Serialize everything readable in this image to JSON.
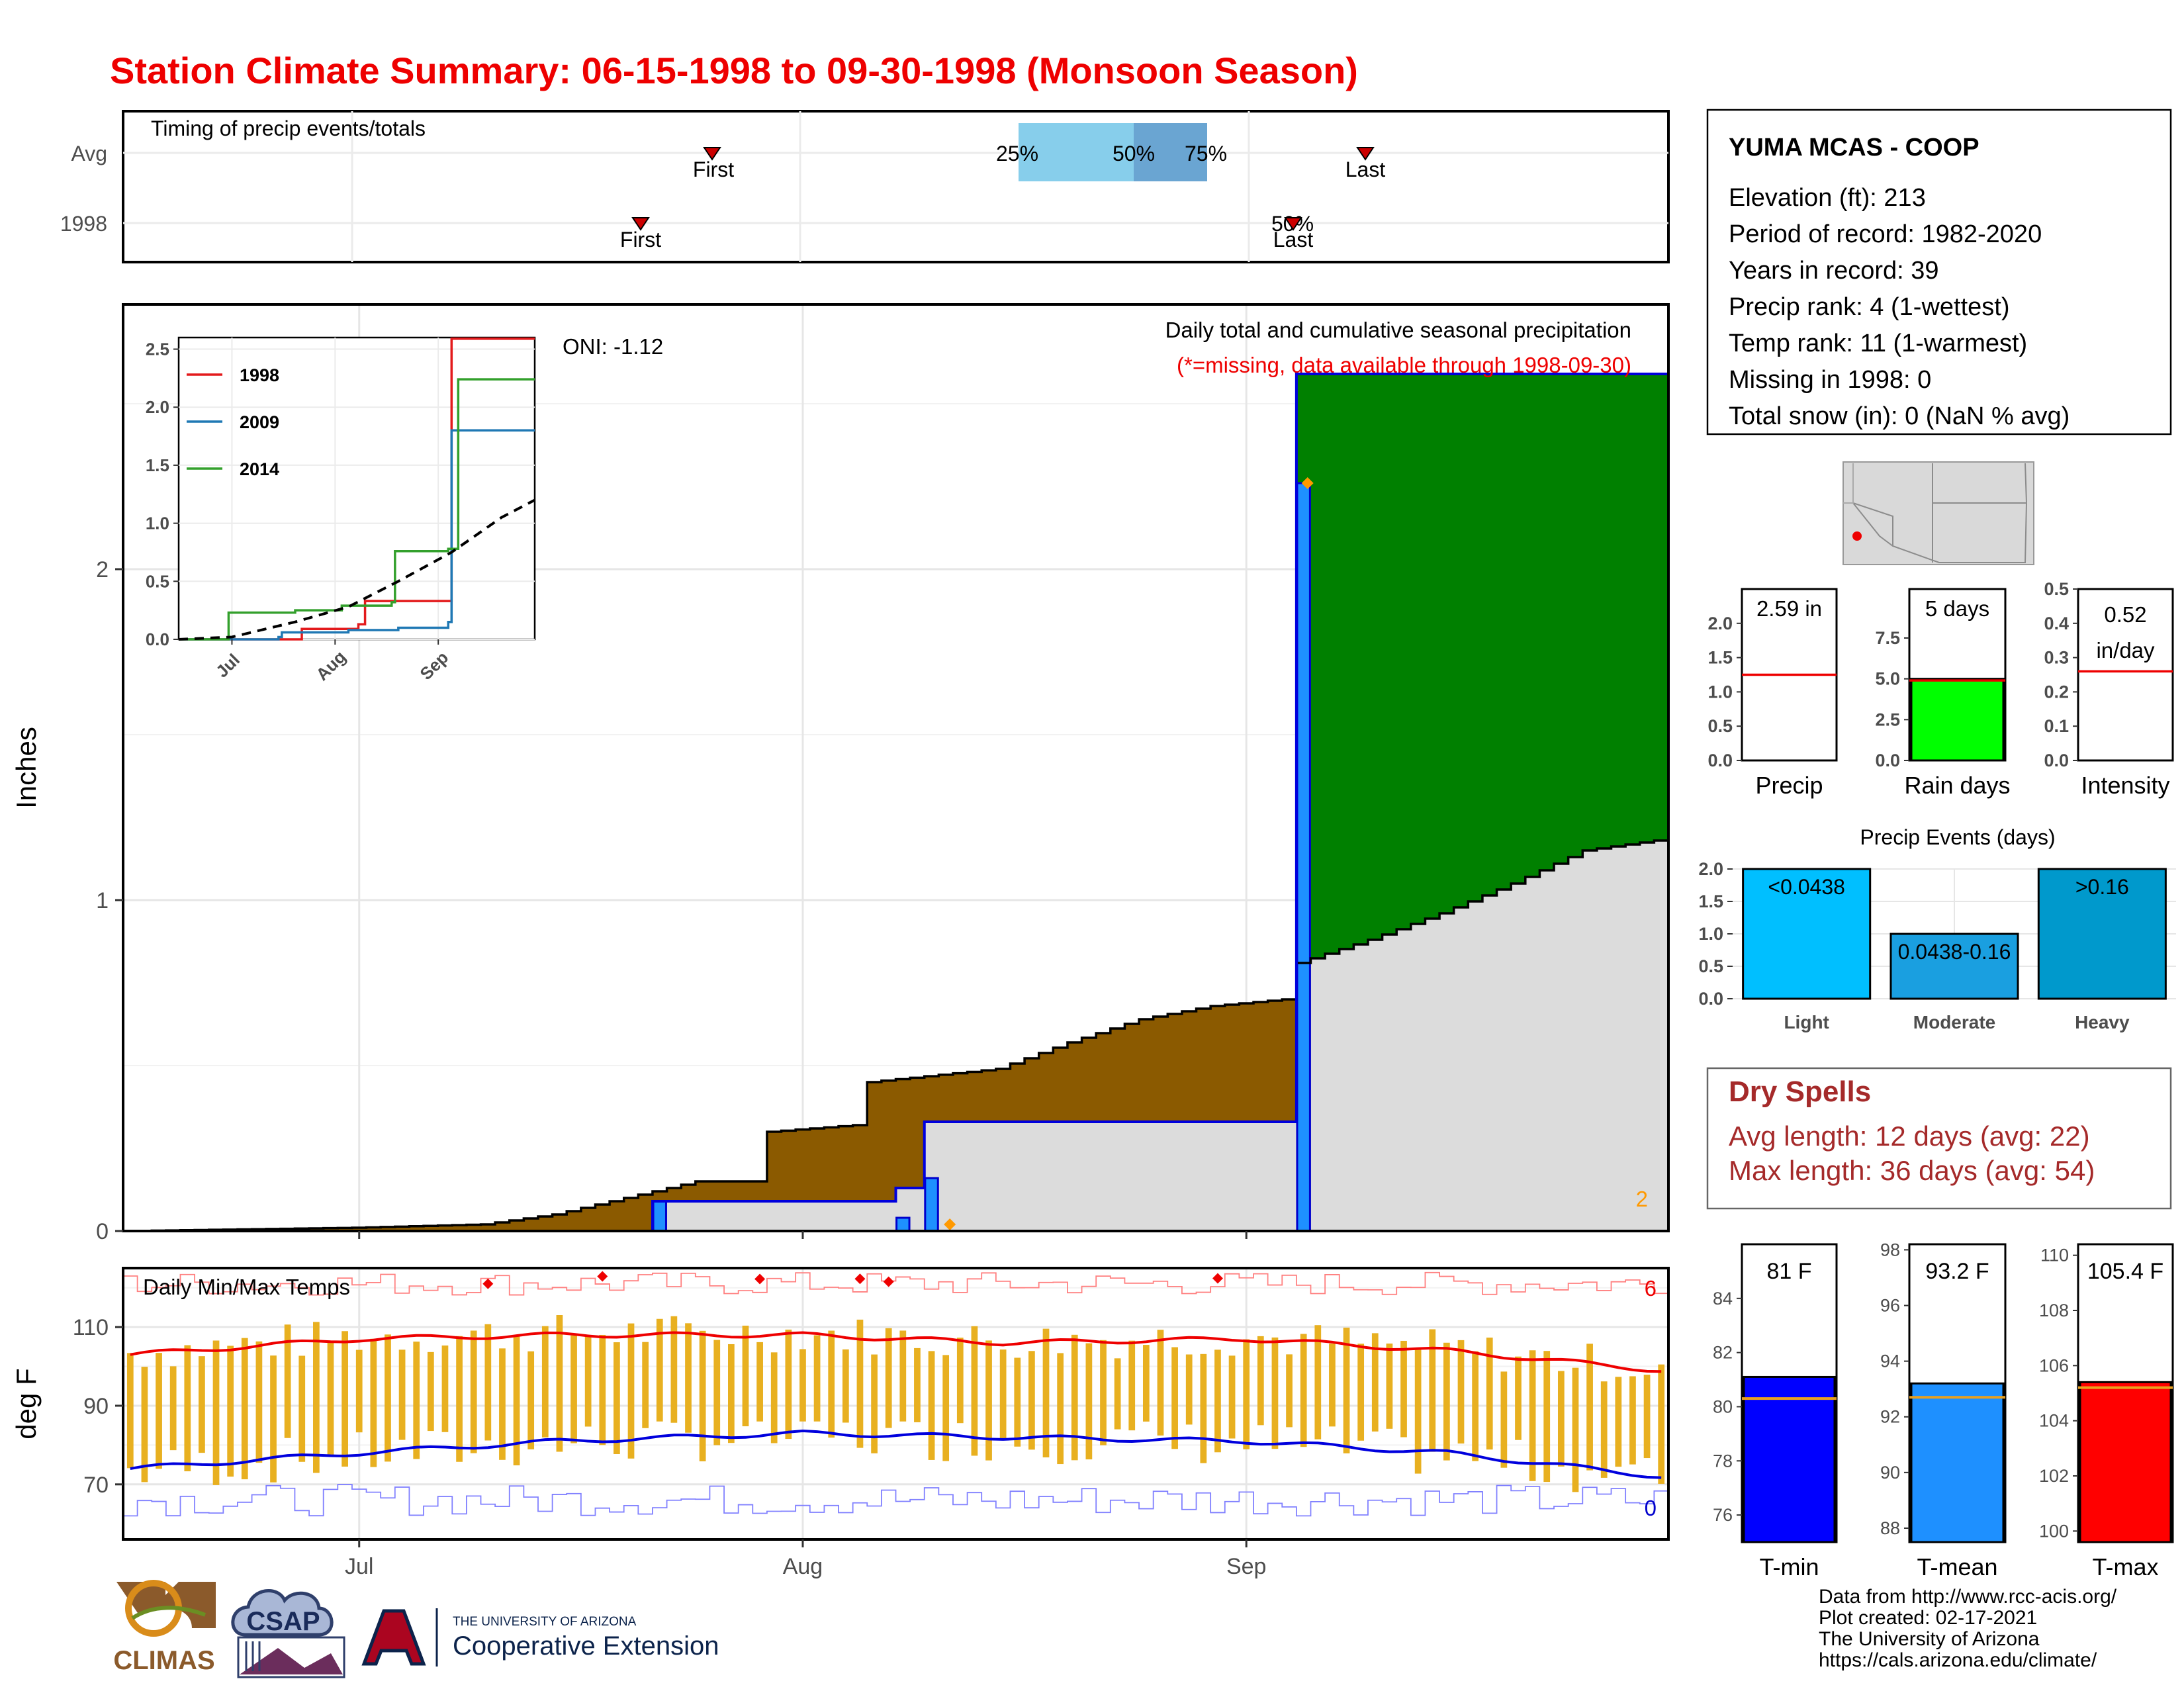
{
  "title": "Station Climate Summary: 06-15-1998 to 09-30-1998 (Monsoon Season)",
  "months": [
    "Jul",
    "Aug",
    "Sep"
  ],
  "timing": {
    "label": "Timing of precip events/totals",
    "row_avg": "Avg",
    "row_year": "1998",
    "first": "First",
    "last": "Last",
    "p25": "25%",
    "p50": "50%",
    "p75": "75%",
    "year_percent_overlap": "50%"
  },
  "main_panel": {
    "ylabel": "Inches",
    "oni": "ONI: -1.12",
    "title": "Daily total and cumulative seasonal precipitation",
    "note": "(*=missing, data available through 1998-09-30)",
    "corner_count": "2"
  },
  "inset": {
    "series": [
      {
        "name": "1998",
        "color": "#e31a1c"
      },
      {
        "name": "2009",
        "color": "#1f78b4"
      },
      {
        "name": "2014",
        "color": "#33a02c"
      }
    ]
  },
  "temp_panel": {
    "label": "Daily Min/Max Temps",
    "ylabel": "deg F",
    "max_count": "6",
    "min_count": "0"
  },
  "station": {
    "name": "YUMA MCAS - COOP",
    "lines": [
      "Elevation (ft): 213",
      "Period of record: 1982-2020",
      "Years in record: 39",
      "Precip rank: 4 (1-wettest)",
      "Temp rank: 11 (1-warmest)",
      "Missing in 1998: 0",
      "Total snow (in): 0 (NaN % avg)"
    ]
  },
  "mini_bars": [
    {
      "label": "Precip",
      "value_text": "2.59 in",
      "value": 2.59,
      "avg": 1.25,
      "ymax": 2.5,
      "ticks": [
        "0.0",
        "0.5",
        "1.0",
        "1.5",
        "2.0"
      ],
      "color": "#ffffff"
    },
    {
      "label": "Rain days",
      "value_text": "5 days",
      "value": 5,
      "avg": 4.9,
      "ymax": 10.5,
      "ticks": [
        "0.0",
        "2.5",
        "5.0",
        "7.5"
      ],
      "color": "#00ff00"
    },
    {
      "label": "Intensity",
      "value_text": "0.52 in/day",
      "value_line1": "0.52",
      "value_line2": "in/day",
      "value": 0.52,
      "avg": 0.26,
      "ymax": 0.5,
      "ticks": [
        "0.0",
        "0.1",
        "0.2",
        "0.3",
        "0.4",
        "0.5"
      ],
      "color": "#ffffff"
    }
  ],
  "precip_events": {
    "title": "Precip Events (days)",
    "categories": [
      "Light",
      "Moderate",
      "Heavy"
    ],
    "bar_labels": [
      "<0.0438",
      "0.0438-0.16",
      ">0.16"
    ],
    "values": [
      2,
      1,
      2
    ],
    "colors": [
      "#00bfff",
      "#1a9fe0",
      "#0099cc"
    ],
    "ticks": [
      "0.0",
      "0.5",
      "1.0",
      "1.5",
      "2.0"
    ]
  },
  "dry_spells": {
    "title": "Dry Spells",
    "avg": "Avg length: 12 days (avg: 22)",
    "max": "Max length: 36 days (avg: 54)"
  },
  "temp_bars": [
    {
      "label": "T-min",
      "value_text": "81 F",
      "value": 81.1,
      "avg": 80.3,
      "ylim": [
        75,
        86
      ],
      "ticks": [
        "76",
        "78",
        "80",
        "82",
        "84"
      ],
      "color": "#0000ff"
    },
    {
      "label": "T-mean",
      "value_text": "93.2 F",
      "value": 93.2,
      "avg": 92.7,
      "ylim": [
        87.5,
        98.2
      ],
      "ticks": [
        "88",
        "90",
        "92",
        "94",
        "96",
        "98"
      ],
      "color": "#1e90ff"
    },
    {
      "label": "T-max",
      "value_text": "105.4 F",
      "value": 105.4,
      "avg": 105.2,
      "ylim": [
        99.6,
        110.4
      ],
      "ticks": [
        "100",
        "102",
        "104",
        "106",
        "108",
        "110"
      ],
      "color": "#ff0000"
    }
  ],
  "credits": [
    "Data from http://www.rcc-acis.org/",
    "Plot created: 02-17-2021",
    "The University of Arizona",
    "https://cals.arizona.edu/climate/"
  ],
  "logos": {
    "climas": "CLIMAS",
    "csap": "CSAP",
    "ua_top": "THE UNIVERSITY OF ARIZONA",
    "ua_bottom": "Cooperative Extension"
  },
  "chart_data": [
    {
      "type": "area",
      "title": "Daily total and cumulative seasonal precipitation",
      "ylabel": "Inches",
      "x_range": [
        "1998-06-15",
        "1998-09-30"
      ],
      "ylim": [
        0,
        2.8
      ],
      "yticks": [
        0,
        1,
        2
      ],
      "cumulative_1998": [
        {
          "date": "1998-06-15",
          "in": 0.0
        },
        {
          "date": "1998-07-21",
          "in": 0.0
        },
        {
          "date": "1998-07-22",
          "in": 0.09
        },
        {
          "date": "1998-08-07",
          "in": 0.09
        },
        {
          "date": "1998-08-08",
          "in": 0.13
        },
        {
          "date": "1998-08-10",
          "in": 0.33
        },
        {
          "date": "1998-09-04",
          "in": 0.33
        },
        {
          "date": "1998-09-05",
          "in": 2.59
        }
      ],
      "daily_1998": [
        {
          "date": "1998-07-22",
          "in": 0.09
        },
        {
          "date": "1998-08-08",
          "in": 0.04
        },
        {
          "date": "1998-08-10",
          "in": 0.16
        },
        {
          "date": "1998-09-05",
          "in": 2.26
        }
      ],
      "average_cumulative": [
        {
          "date": "1998-06-15",
          "in": 0.0
        },
        {
          "date": "1998-07-01",
          "in": 0.01
        },
        {
          "date": "1998-07-10",
          "in": 0.02
        },
        {
          "date": "1998-07-15",
          "in": 0.05
        },
        {
          "date": "1998-07-20",
          "in": 0.1
        },
        {
          "date": "1998-07-25",
          "in": 0.15
        },
        {
          "date": "1998-07-30",
          "in": 0.3
        },
        {
          "date": "1998-08-05",
          "in": 0.32
        },
        {
          "date": "1998-08-06",
          "in": 0.45
        },
        {
          "date": "1998-08-15",
          "in": 0.49
        },
        {
          "date": "1998-08-20",
          "in": 0.57
        },
        {
          "date": "1998-08-25",
          "in": 0.64
        },
        {
          "date": "1998-08-30",
          "in": 0.68
        },
        {
          "date": "1998-09-04",
          "in": 0.7
        },
        {
          "date": "1998-09-05",
          "in": 0.81
        },
        {
          "date": "1998-09-10",
          "in": 0.88
        },
        {
          "date": "1998-09-15",
          "in": 0.96
        },
        {
          "date": "1998-09-20",
          "in": 1.05
        },
        {
          "date": "1998-09-25",
          "in": 1.15
        },
        {
          "date": "1998-09-30",
          "in": 1.18
        }
      ],
      "missing_markers": [
        {
          "date": "1998-08-11",
          "in": 0.02
        },
        {
          "date": "1998-09-05",
          "in": 2.26
        }
      ]
    },
    {
      "type": "line",
      "title": "",
      "inset": true,
      "x_range": [
        "1998-06-15",
        "1998-09-30"
      ],
      "ylim": [
        0,
        2.6
      ],
      "yticks": [
        0.0,
        0.5,
        1.0,
        1.5,
        2.0,
        2.5
      ],
      "series": [
        {
          "name": "1998",
          "points": [
            [
              "1998-06-15",
              0.0
            ],
            [
              "1998-07-22",
              0.09
            ],
            [
              "1998-08-08",
              0.13
            ],
            [
              "1998-08-10",
              0.33
            ],
            [
              "1998-09-05",
              2.59
            ],
            [
              "1998-09-30",
              2.59
            ]
          ]
        },
        {
          "name": "2009",
          "points": [
            [
              "1998-06-15",
              0.0
            ],
            [
              "1998-07-15",
              0.02
            ],
            [
              "1998-07-16",
              0.06
            ],
            [
              "1998-08-05",
              0.08
            ],
            [
              "1998-08-20",
              0.1
            ],
            [
              "1998-09-04",
              0.15
            ],
            [
              "1998-09-05",
              1.8
            ],
            [
              "1998-09-30",
              1.8
            ]
          ]
        },
        {
          "name": "2014",
          "points": [
            [
              "1998-06-15",
              0.0
            ],
            [
              "1998-06-30",
              0.23
            ],
            [
              "1998-07-20",
              0.25
            ],
            [
              "1998-08-03",
              0.29
            ],
            [
              "1998-08-18",
              0.32
            ],
            [
              "1998-08-19",
              0.76
            ],
            [
              "1998-09-04",
              0.78
            ],
            [
              "1998-09-07",
              2.24
            ],
            [
              "1998-09-30",
              2.24
            ]
          ]
        },
        {
          "name": "average",
          "dashed": true,
          "points": [
            [
              "1998-06-15",
              0.0
            ],
            [
              "1998-07-01",
              0.02
            ],
            [
              "1998-07-20",
              0.15
            ],
            [
              "1998-08-05",
              0.28
            ],
            [
              "1998-08-20",
              0.5
            ],
            [
              "1998-09-05",
              0.75
            ],
            [
              "1998-09-20",
              1.05
            ],
            [
              "1998-09-30",
              1.2
            ]
          ]
        }
      ]
    },
    {
      "type": "line",
      "title": "Daily Min/Max Temps",
      "ylabel": "deg F",
      "x_range": [
        "1998-06-15",
        "1998-09-30"
      ],
      "ylim": [
        56,
        125
      ],
      "yticks": [
        70,
        90,
        110
      ],
      "avg_max": [
        [
          "1998-06-15",
          103
        ],
        [
          "1998-07-01",
          107
        ],
        [
          "1998-07-15",
          108
        ],
        [
          "1998-08-01",
          108
        ],
        [
          "1998-08-15",
          106
        ],
        [
          "1998-09-01",
          107
        ],
        [
          "1998-09-15",
          104
        ],
        [
          "1998-09-30",
          99
        ]
      ],
      "avg_min": [
        [
          "1998-06-15",
          74
        ],
        [
          "1998-07-01",
          78
        ],
        [
          "1998-07-15",
          81
        ],
        [
          "1998-08-01",
          83
        ],
        [
          "1998-08-15",
          82
        ],
        [
          "1998-09-01",
          81
        ],
        [
          "1998-09-15",
          78
        ],
        [
          "1998-09-30",
          72
        ]
      ],
      "record_max_band": [
        118,
        124
      ],
      "record_min_band": [
        58,
        66
      ],
      "daily_max_range": [
        96,
        114
      ],
      "daily_min_range": [
        66,
        86
      ],
      "record_high_markers": [
        "1998-07-10",
        "1998-07-18",
        "1998-07-29",
        "1998-08-05",
        "1998-08-07",
        "1998-08-30"
      ]
    },
    {
      "type": "bar",
      "title": "Precip Events (days)",
      "categories": [
        "Light",
        "Moderate",
        "Heavy"
      ],
      "values": [
        2,
        1,
        2
      ],
      "ylim": [
        0,
        2
      ]
    }
  ]
}
